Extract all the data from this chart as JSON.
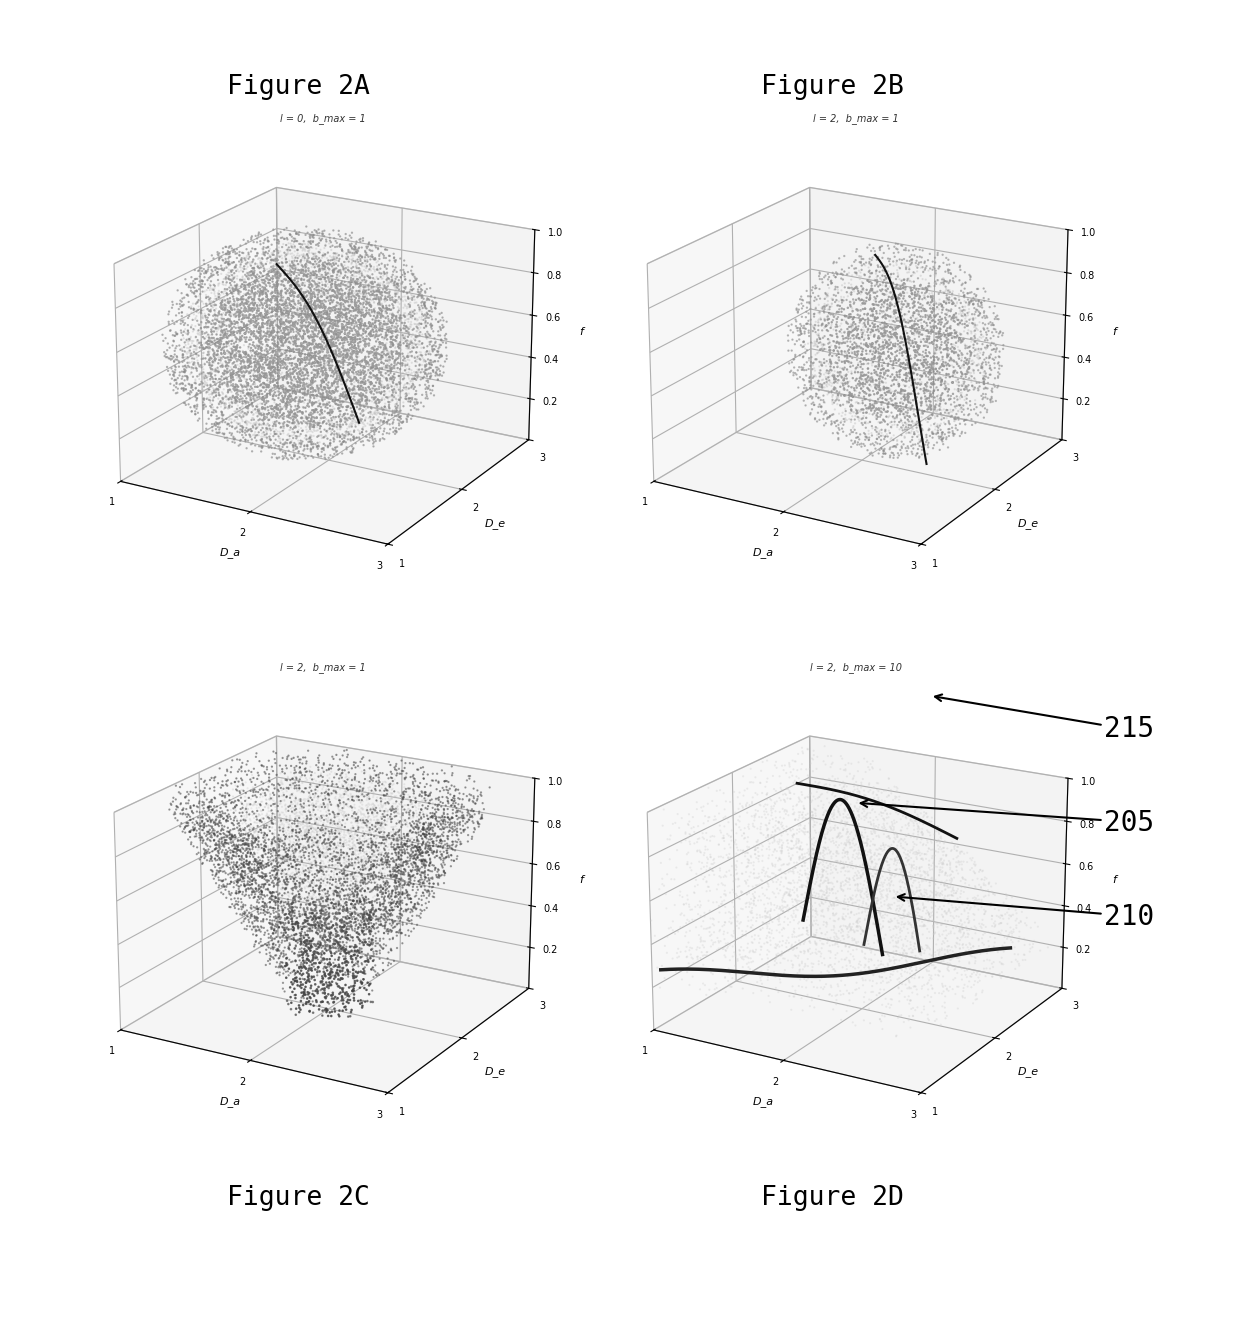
{
  "fig_title_A": "Figure 2A",
  "fig_title_B": "Figure 2B",
  "fig_title_C": "Figure 2C",
  "fig_title_D": "Figure 2D",
  "subtitle_A": "l = 0,  b_max = 1",
  "subtitle_B": "l = 2,  b_max = 1",
  "subtitle_C": "l = 2,  b_max = 1",
  "subtitle_D": "l = 2,  b_max = 10",
  "ylabel": "f",
  "xlabel_Da": "D_a",
  "xlabel_De": "D_e",
  "label_205": "205",
  "label_210": "210",
  "label_215": "215",
  "background_color": "#ffffff",
  "color_light": "#bbbbbb",
  "color_mid": "#888888",
  "color_dark": "#444444",
  "curve_color": "#111111",
  "elev": 20,
  "azim": -60
}
